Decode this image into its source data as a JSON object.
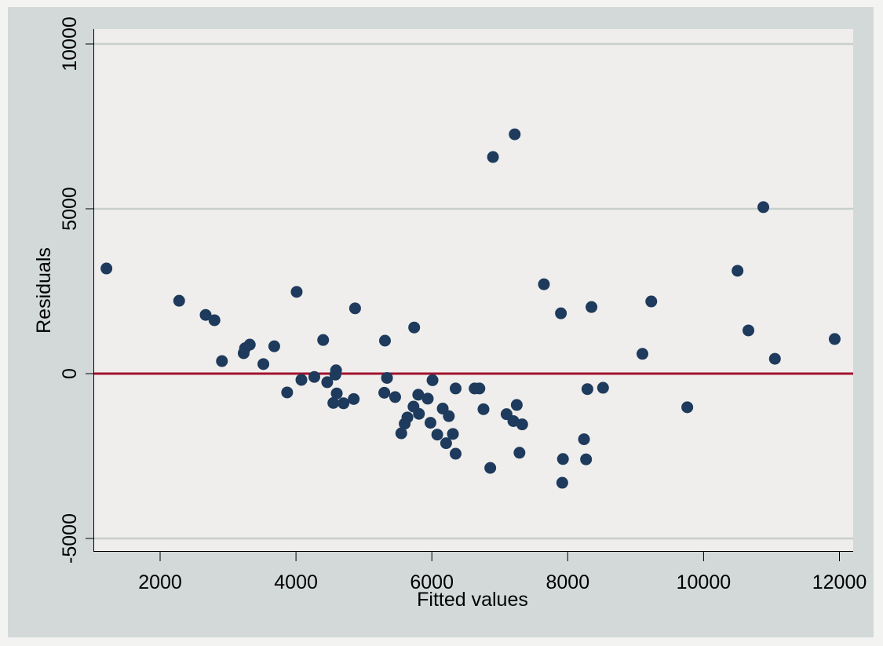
{
  "chart_data": {
    "type": "scatter",
    "title": "",
    "xlabel": "Fitted values",
    "ylabel": "Residuals",
    "xlim": [
      1000,
      12200
    ],
    "ylim": [
      -5400,
      10400
    ],
    "x_ticks": [
      2000,
      4000,
      6000,
      8000,
      10000,
      12000
    ],
    "y_ticks": [
      -5000,
      0,
      5000,
      10000
    ],
    "x_tick_labels": [
      "2000",
      "4000",
      "6000",
      "8000",
      "10000",
      "12000"
    ],
    "y_tick_labels": [
      "-5000",
      "0",
      "5000",
      "10000"
    ],
    "grid": {
      "horizontal": true,
      "vertical": false,
      "color": "#c8cfcc"
    },
    "reference_line": {
      "y": 0,
      "color": "#a3122f"
    },
    "marker_color": "#1e3a5c",
    "legend": null,
    "points": [
      {
        "x": 1210,
        "y": 3190
      },
      {
        "x": 2280,
        "y": 2210
      },
      {
        "x": 2670,
        "y": 1780
      },
      {
        "x": 2800,
        "y": 1620
      },
      {
        "x": 2910,
        "y": 380
      },
      {
        "x": 3230,
        "y": 620
      },
      {
        "x": 3250,
        "y": 770
      },
      {
        "x": 3320,
        "y": 880
      },
      {
        "x": 3520,
        "y": 290
      },
      {
        "x": 3680,
        "y": 830
      },
      {
        "x": 3870,
        "y": -570
      },
      {
        "x": 4010,
        "y": 2480
      },
      {
        "x": 4080,
        "y": -190
      },
      {
        "x": 4270,
        "y": -100
      },
      {
        "x": 4400,
        "y": 1020
      },
      {
        "x": 4460,
        "y": -260
      },
      {
        "x": 4550,
        "y": -890
      },
      {
        "x": 4580,
        "y": -30
      },
      {
        "x": 4590,
        "y": 100
      },
      {
        "x": 4600,
        "y": -600
      },
      {
        "x": 4700,
        "y": -900
      },
      {
        "x": 4850,
        "y": -770
      },
      {
        "x": 4870,
        "y": 1980
      },
      {
        "x": 5300,
        "y": -580
      },
      {
        "x": 5310,
        "y": 1000
      },
      {
        "x": 5340,
        "y": -130
      },
      {
        "x": 5460,
        "y": -710
      },
      {
        "x": 5550,
        "y": -1810
      },
      {
        "x": 5600,
        "y": -1520
      },
      {
        "x": 5640,
        "y": -1330
      },
      {
        "x": 5730,
        "y": -1000
      },
      {
        "x": 5740,
        "y": 1400
      },
      {
        "x": 5800,
        "y": -640
      },
      {
        "x": 5810,
        "y": -1220
      },
      {
        "x": 5940,
        "y": -760
      },
      {
        "x": 5980,
        "y": -1490
      },
      {
        "x": 6010,
        "y": -200
      },
      {
        "x": 6080,
        "y": -1850
      },
      {
        "x": 6160,
        "y": -1060
      },
      {
        "x": 6210,
        "y": -2110
      },
      {
        "x": 6250,
        "y": -1290
      },
      {
        "x": 6310,
        "y": -1830
      },
      {
        "x": 6350,
        "y": -450
      },
      {
        "x": 6350,
        "y": -2430
      },
      {
        "x": 6630,
        "y": -450
      },
      {
        "x": 6700,
        "y": -450
      },
      {
        "x": 6760,
        "y": -1080
      },
      {
        "x": 6860,
        "y": -2860
      },
      {
        "x": 6900,
        "y": 6570
      },
      {
        "x": 7100,
        "y": -1230
      },
      {
        "x": 7200,
        "y": -1440
      },
      {
        "x": 7220,
        "y": 7260
      },
      {
        "x": 7250,
        "y": -950
      },
      {
        "x": 7290,
        "y": -2400
      },
      {
        "x": 7330,
        "y": -1540
      },
      {
        "x": 7650,
        "y": 2710
      },
      {
        "x": 7900,
        "y": 1830
      },
      {
        "x": 7920,
        "y": -3310
      },
      {
        "x": 7930,
        "y": -2590
      },
      {
        "x": 8240,
        "y": -1990
      },
      {
        "x": 8270,
        "y": -2600
      },
      {
        "x": 8290,
        "y": -470
      },
      {
        "x": 8350,
        "y": 2020
      },
      {
        "x": 8520,
        "y": -430
      },
      {
        "x": 9100,
        "y": 600
      },
      {
        "x": 9230,
        "y": 2190
      },
      {
        "x": 9760,
        "y": -1020
      },
      {
        "x": 10500,
        "y": 3120
      },
      {
        "x": 10660,
        "y": 1310
      },
      {
        "x": 10880,
        "y": 5050
      },
      {
        "x": 11050,
        "y": 450
      },
      {
        "x": 11930,
        "y": 1050
      }
    ]
  }
}
